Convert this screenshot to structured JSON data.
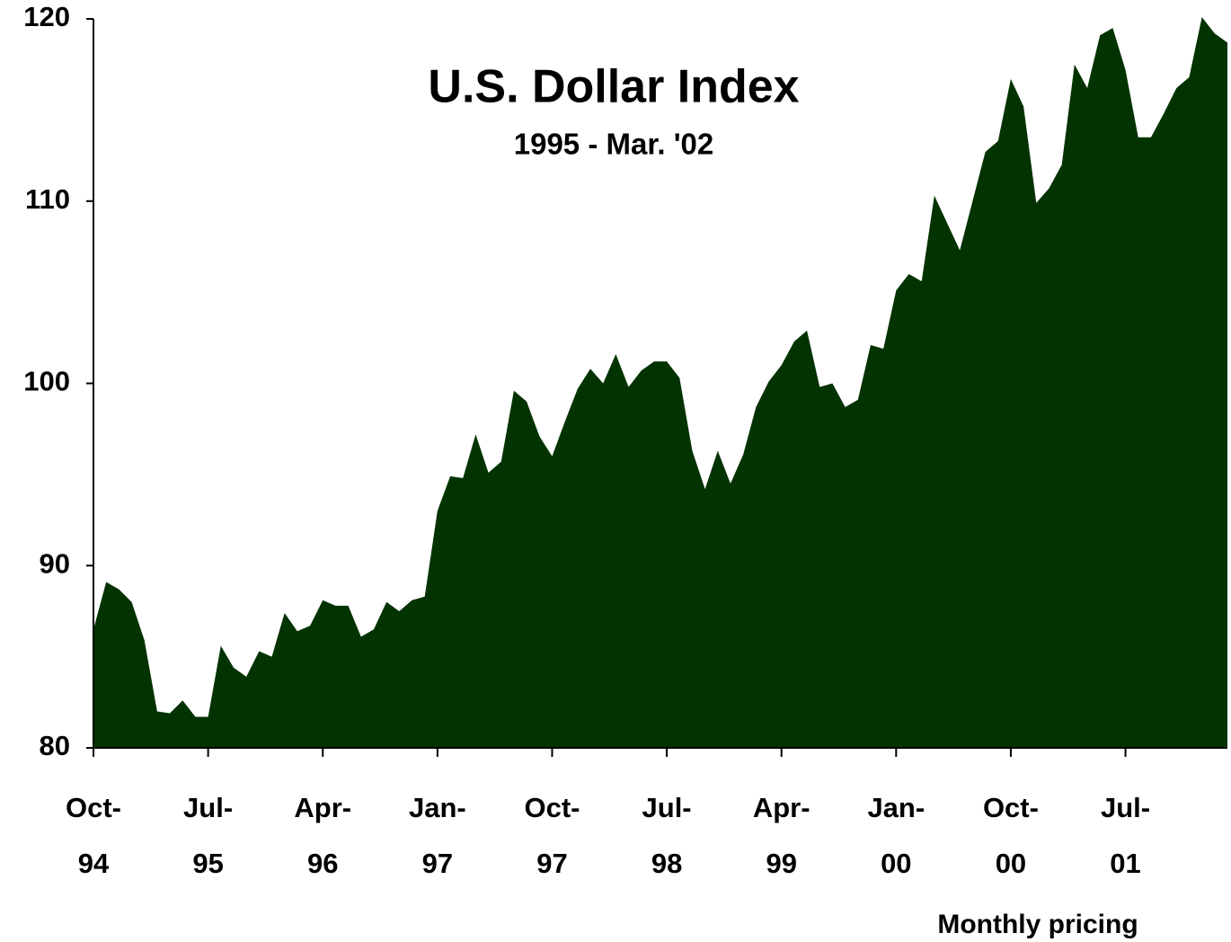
{
  "chart_data": {
    "type": "area",
    "title": "U.S. Dollar Index",
    "subtitle": "1995 - Mar. '02",
    "annotation": "Monthly pricing",
    "color": "#033300",
    "categories": [
      "Oct-94",
      null,
      null,
      null,
      null,
      null,
      null,
      null,
      null,
      "Jul-95",
      null,
      null,
      null,
      null,
      null,
      null,
      null,
      null,
      "Apr-96",
      null,
      null,
      null,
      null,
      null,
      null,
      null,
      null,
      "Jan-97",
      null,
      null,
      null,
      null,
      null,
      null,
      null,
      null,
      "Oct-97",
      null,
      null,
      null,
      null,
      null,
      null,
      null,
      null,
      "Jul-98",
      null,
      null,
      null,
      null,
      null,
      null,
      null,
      null,
      "Apr-99",
      null,
      null,
      null,
      null,
      null,
      null,
      null,
      null,
      "Jan-00",
      null,
      null,
      null,
      null,
      null,
      null,
      null,
      null,
      "Oct-00",
      null,
      null,
      null,
      null,
      null,
      null,
      null,
      null,
      "Jul-01",
      null,
      null,
      null,
      null,
      null,
      null,
      null,
      null
    ],
    "values": [
      86.5,
      89.1,
      88.7,
      88.0,
      85.9,
      82.0,
      81.9,
      82.6,
      81.7,
      81.7,
      85.6,
      84.4,
      83.9,
      85.3,
      85.0,
      87.4,
      86.4,
      86.7,
      88.1,
      87.8,
      87.8,
      86.1,
      86.5,
      88.0,
      87.5,
      88.1,
      88.3,
      93.0,
      94.9,
      94.8,
      97.2,
      95.1,
      95.7,
      99.6,
      99.0,
      97.1,
      96.0,
      97.9,
      99.7,
      100.8,
      100.0,
      101.6,
      99.8,
      100.7,
      101.2,
      101.2,
      100.3,
      96.3,
      94.2,
      96.3,
      94.5,
      96.1,
      98.7,
      100.1,
      101.0,
      102.3,
      102.9,
      99.8,
      100.0,
      98.7,
      99.1,
      102.1,
      101.9,
      105.1,
      106.0,
      105.6,
      110.3,
      108.8,
      107.3,
      110.0,
      112.7,
      113.3,
      116.7,
      115.2,
      109.9,
      110.7,
      112.0,
      117.5,
      116.2,
      119.1,
      119.5,
      117.2,
      113.5,
      113.5,
      114.8,
      116.2,
      116.8,
      120.1,
      119.2,
      118.7
    ],
    "ylim": [
      80,
      120
    ],
    "yticks": [
      80,
      90,
      100,
      110,
      120
    ]
  }
}
